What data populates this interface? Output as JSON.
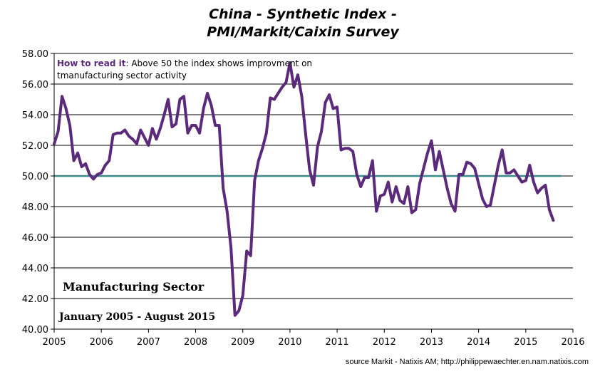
{
  "chart_data": {
    "type": "line",
    "title_line1": "China - Synthetic Index -",
    "title_line2": "PMI/Markit/Caixin Survey",
    "note_key": "How to read it",
    "note_text1": ": Above 50 the index shows improvment  on",
    "note_text2": "tmanufacturing sector activity",
    "label_sector": "Manufacturing Sector",
    "label_period": "January 2005 - August 2015",
    "source": "source Markit - Natixis AM;  http://philippewaechter.en.nam.natixis.com",
    "ylim": [
      40,
      58
    ],
    "xlim": [
      2005,
      2016
    ],
    "y_ticks": [
      "40.00",
      "42.00",
      "44.00",
      "46.00",
      "48.00",
      "50.00",
      "52.00",
      "54.00",
      "56.00",
      "58.00"
    ],
    "x_ticks": [
      "2005",
      "2006",
      "2007",
      "2008",
      "2009",
      "2010",
      "2011",
      "2012",
      "2013",
      "2014",
      "2015",
      "2016"
    ],
    "reference_line": 50,
    "line_color": "#5b2a7a",
    "reference_color": "#3a8a8a",
    "series": [
      {
        "name": "PMI Manufacturing",
        "start": "2005-01",
        "values": [
          52.1,
          52.9,
          55.2,
          54.4,
          53.3,
          51.0,
          51.5,
          50.6,
          50.8,
          50.1,
          49.8,
          50.1,
          50.2,
          50.7,
          51.0,
          52.7,
          52.8,
          52.8,
          53.0,
          52.6,
          52.4,
          52.1,
          53.0,
          52.5,
          52.0,
          53.1,
          52.4,
          53.1,
          54.0,
          55.0,
          53.2,
          53.4,
          55.0,
          55.2,
          52.8,
          53.3,
          53.3,
          52.8,
          54.4,
          55.4,
          54.6,
          53.3,
          53.3,
          49.2,
          47.7,
          45.3,
          40.9,
          41.2,
          42.2,
          45.1,
          44.8,
          49.7,
          51.0,
          51.8,
          52.8,
          55.1,
          55.0,
          55.4,
          55.8,
          56.1,
          57.4,
          55.8,
          56.6,
          55.2,
          52.7,
          50.4,
          49.4,
          51.9,
          52.9,
          54.8,
          55.3,
          54.4,
          54.5,
          51.7,
          51.8,
          51.8,
          51.6,
          50.1,
          49.3,
          49.9,
          49.9,
          51.0,
          47.7,
          48.7,
          48.8,
          49.6,
          48.3,
          49.3,
          48.4,
          48.2,
          49.3,
          47.6,
          47.8,
          49.5,
          50.5,
          51.5,
          52.3,
          50.4,
          51.6,
          50.4,
          49.2,
          48.2,
          47.7,
          50.1,
          50.1,
          50.9,
          50.8,
          50.5,
          49.5,
          48.5,
          48.0,
          48.1,
          49.4,
          50.7,
          51.7,
          50.2,
          50.2,
          50.4,
          50.0,
          49.6,
          49.7,
          50.7,
          49.6,
          48.9,
          49.2,
          49.4,
          47.8,
          47.1
        ]
      }
    ]
  }
}
